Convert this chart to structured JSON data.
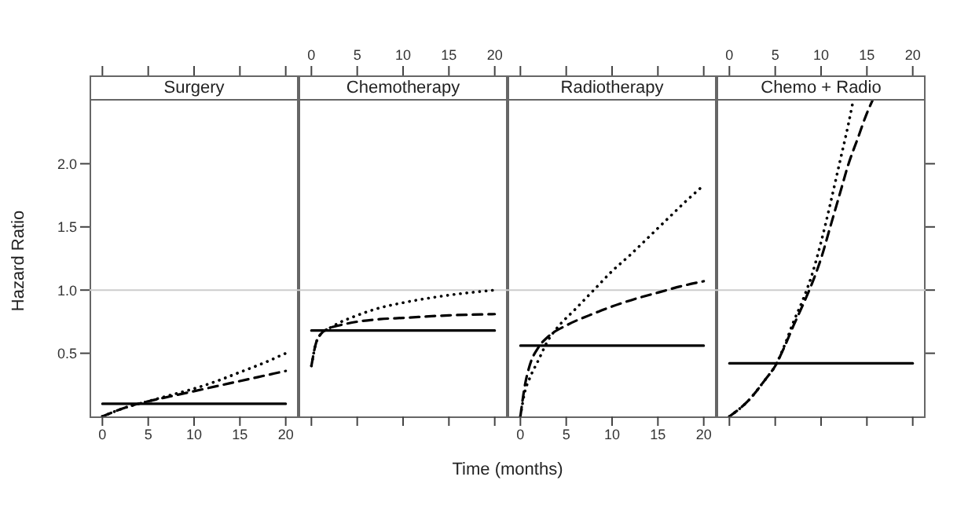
{
  "chart_data": [
    {
      "type": "line",
      "title": "Surgery",
      "ylabel": "Hazard Ratio",
      "xlim": [
        -1.4,
        21.4
      ],
      "xticks": [
        0,
        5,
        10,
        15,
        20
      ],
      "ylim": [
        0,
        2.5
      ],
      "yticks": [
        0.5,
        {
          "value": 1,
          "label": "1.0"
        },
        {
          "value": 1.5,
          "label": "1.5"
        },
        {
          "value": 2,
          "label": "2.0"
        }
      ],
      "ref_lines": [
        {
          "axis": "y",
          "value": 1,
          "color": "#cccccc"
        }
      ],
      "grid": false,
      "legend": false,
      "series": [
        {
          "color": "#000000",
          "line_style": "solid",
          "x": [
            0,
            20
          ],
          "values": [
            0.1,
            0.1
          ]
        },
        {
          "color": "#000000",
          "line_style": "dashed",
          "x": [
            0,
            2.5,
            5,
            7.5,
            10,
            12.5,
            15,
            17.5,
            20
          ],
          "values": [
            0,
            0.07,
            0.12,
            0.16,
            0.2,
            0.24,
            0.28,
            0.32,
            0.36
          ]
        },
        {
          "color": "#000000",
          "line_style": "dotted",
          "x": [
            0,
            2.5,
            5,
            7.5,
            10,
            12.5,
            15,
            17.5,
            20
          ],
          "values": [
            0,
            0.07,
            0.12,
            0.17,
            0.22,
            0.28,
            0.35,
            0.42,
            0.5
          ]
        }
      ]
    },
    {
      "type": "line",
      "title": "Chemotherapy",
      "xlabel": "Time (months)",
      "xlim": [
        -1.4,
        21.4
      ],
      "xticks": [
        0,
        5,
        10,
        15,
        20
      ],
      "x2lim": [
        -1.4,
        21.4
      ],
      "x2ticks": [
        0,
        5,
        10,
        15,
        20
      ],
      "ylim": [
        0,
        2.5
      ],
      "tick_labels": false,
      "ref_lines": [
        {
          "axis": "y",
          "value": 1,
          "color": "#cccccc"
        }
      ],
      "grid": false,
      "legend": false,
      "series": [
        {
          "color": "#000000",
          "line_style": "solid",
          "x": [
            0,
            20
          ],
          "values": [
            0.68,
            0.68
          ]
        },
        {
          "color": "#000000",
          "line_style": "dashed",
          "x": [
            0,
            0.5,
            1,
            2,
            3,
            5,
            7.5,
            10,
            15,
            20
          ],
          "values": [
            0.4,
            0.58,
            0.65,
            0.7,
            0.72,
            0.75,
            0.77,
            0.78,
            0.8,
            0.81
          ]
        },
        {
          "color": "#000000",
          "line_style": "dotted",
          "x": [
            0,
            0.5,
            1,
            2,
            3,
            5,
            7.5,
            10,
            15,
            20
          ],
          "values": [
            0.4,
            0.58,
            0.65,
            0.7,
            0.74,
            0.8,
            0.86,
            0.9,
            0.96,
            1.0
          ]
        }
      ]
    },
    {
      "type": "line",
      "title": "Radiotherapy",
      "xlim": [
        -1.4,
        21.4
      ],
      "xticks": [
        0,
        5,
        10,
        15,
        20
      ],
      "ylim": [
        0,
        2.5
      ],
      "tick_labels": "x",
      "ref_lines": [
        {
          "axis": "y",
          "value": 1,
          "color": "#cccccc"
        }
      ],
      "grid": false,
      "legend": false,
      "series": [
        {
          "color": "#000000",
          "line_style": "solid",
          "x": [
            0,
            20
          ],
          "values": [
            0.56,
            0.56
          ]
        },
        {
          "color": "#000000",
          "line_style": "dashed",
          "x": [
            0,
            0.5,
            1,
            2,
            3,
            5,
            7.5,
            10,
            12.5,
            15,
            17.5,
            20
          ],
          "values": [
            0,
            0.25,
            0.4,
            0.55,
            0.63,
            0.72,
            0.8,
            0.87,
            0.93,
            0.98,
            1.03,
            1.07
          ]
        },
        {
          "color": "#000000",
          "line_style": "dotted",
          "x": [
            0,
            0.5,
            1,
            2,
            3,
            4,
            6,
            8,
            10,
            12,
            14,
            16,
            18,
            20
          ],
          "values": [
            0,
            0.2,
            0.3,
            0.45,
            0.6,
            0.7,
            0.85,
            1.0,
            1.15,
            1.28,
            1.42,
            1.56,
            1.7,
            1.83
          ]
        }
      ]
    },
    {
      "type": "line",
      "title": "Chemo + Radio",
      "xlim": [
        -1.4,
        21.4
      ],
      "xticks": [
        0,
        5,
        10,
        15,
        20
      ],
      "x2lim": [
        -1.4,
        21.4
      ],
      "x2ticks": [
        0,
        5,
        10,
        15,
        20
      ],
      "ylim": [
        0,
        2.5
      ],
      "yticks": [
        {
          "value": 0.5,
          "label": null
        },
        {
          "value": 1,
          "label": null
        },
        {
          "value": 1.5,
          "label": null
        },
        {
          "value": 2,
          "label": null
        }
      ],
      "tick_labels": false,
      "ref_lines": [
        {
          "axis": "y",
          "value": 1,
          "color": "#cccccc"
        }
      ],
      "grid": false,
      "legend": false,
      "series": [
        {
          "color": "#000000",
          "line_style": "solid",
          "x": [
            0,
            20
          ],
          "values": [
            0.42,
            0.42
          ]
        },
        {
          "color": "#000000",
          "line_style": "dashed",
          "x": [
            0,
            2,
            4,
            5,
            6,
            7,
            8,
            9,
            10,
            11,
            12,
            13,
            14,
            15,
            15.6
          ],
          "values": [
            0,
            0.12,
            0.3,
            0.4,
            0.55,
            0.72,
            0.88,
            1.05,
            1.25,
            1.5,
            1.75,
            2.0,
            2.2,
            2.4,
            2.5
          ]
        },
        {
          "color": "#000000",
          "line_style": "dotted",
          "x": [
            0,
            2,
            4,
            5,
            6,
            7,
            8,
            9,
            10,
            11,
            12,
            13,
            13.5
          ],
          "values": [
            0,
            0.12,
            0.3,
            0.4,
            0.56,
            0.75,
            0.92,
            1.12,
            1.38,
            1.68,
            2.0,
            2.32,
            2.5
          ]
        }
      ]
    }
  ]
}
